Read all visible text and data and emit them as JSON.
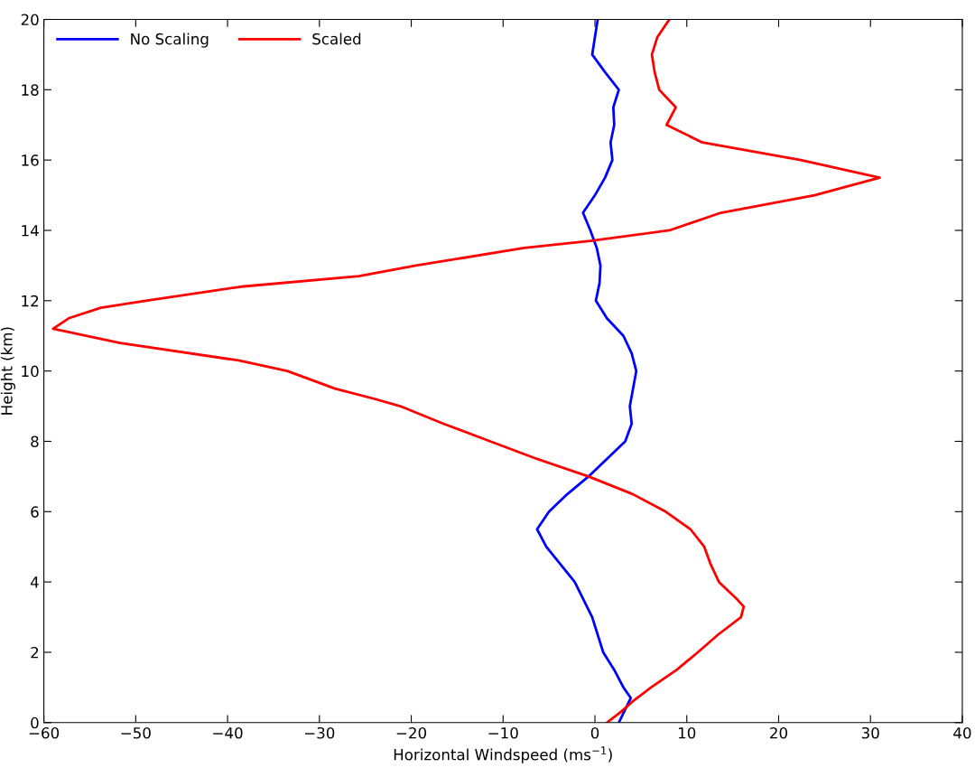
{
  "chart_data": {
    "type": "line",
    "xlabel": "Horizontal Windspeed (ms$^{−1}$)",
    "ylabel": "Height (km)",
    "xlim": [
      -60,
      40
    ],
    "xticks": [
      -60,
      -50,
      -40,
      -30,
      -20,
      -10,
      0,
      10,
      20,
      30,
      40
    ],
    "ylim": [
      0,
      20
    ],
    "yticks": [
      0,
      2,
      4,
      6,
      8,
      10,
      12,
      14,
      16,
      18,
      20
    ],
    "grid": false,
    "legend": "top left",
    "marker": "none",
    "line_style": "solid",
    "series": [
      {
        "name": "No Scaling",
        "color": "#0000ff",
        "x": [
          2.6,
          3.9,
          3.1,
          2.1,
          0.9,
          -0.3,
          -2.2,
          -5.3,
          -6.3,
          -5.0,
          -3.0,
          -0.7,
          1.3,
          3.3,
          4.0,
          3.8,
          4.5,
          4.0,
          3.1,
          1.3,
          0.1,
          0.5,
          0.6,
          0.2,
          -0.5,
          -1.3,
          0.0,
          1.1,
          1.9,
          1.7,
          2.1,
          2.0,
          2.6,
          1.1,
          -0.3,
          0.0,
          0.3
        ],
        "values": [
          0,
          0.7,
          1,
          1.5,
          2,
          3,
          4,
          5,
          5.5,
          6,
          6.5,
          7,
          7.5,
          8,
          8.5,
          9,
          10,
          10.5,
          11,
          11.5,
          12,
          12.5,
          13,
          13.5,
          14,
          14.5,
          15,
          15.5,
          16,
          16.5,
          17,
          17.5,
          18,
          18.5,
          19,
          19.5,
          20
        ]
      },
      {
        "name": "Scaled",
        "color": "#ff0000",
        "x": [
          1.3,
          2.8,
          4.1,
          6.1,
          8.9,
          11.2,
          13.4,
          15.9,
          16.2,
          15.5,
          13.5,
          12.6,
          11.9,
          10.4,
          7.7,
          4.1,
          -0.7,
          -6.3,
          -11.4,
          -16.5,
          -21.2,
          -23.9,
          -28.3,
          -33.5,
          -38.8,
          -51.7,
          -59.0,
          -57.3,
          -53.8,
          -48.9,
          -38.5,
          -25.7,
          -19.5,
          -7.7,
          -0.5,
          8.1,
          13.7,
          23.9,
          31.0,
          22.4,
          11.7,
          7.8,
          8.8,
          7.0,
          6.5,
          6.2,
          6.8,
          8.1
        ],
        "values": [
          0,
          0.3,
          0.6,
          1,
          1.5,
          2,
          2.5,
          3,
          3.3,
          3.5,
          4,
          4.5,
          5,
          5.5,
          6,
          6.5,
          7,
          7.5,
          8,
          8.5,
          9,
          9.2,
          9.5,
          10,
          10.3,
          10.8,
          11.2,
          11.5,
          11.8,
          12,
          12.4,
          12.7,
          13,
          13.5,
          13.7,
          14,
          14.5,
          15,
          15.5,
          16,
          16.5,
          17,
          17.5,
          18,
          18.5,
          19,
          19.5,
          20
        ]
      }
    ]
  }
}
